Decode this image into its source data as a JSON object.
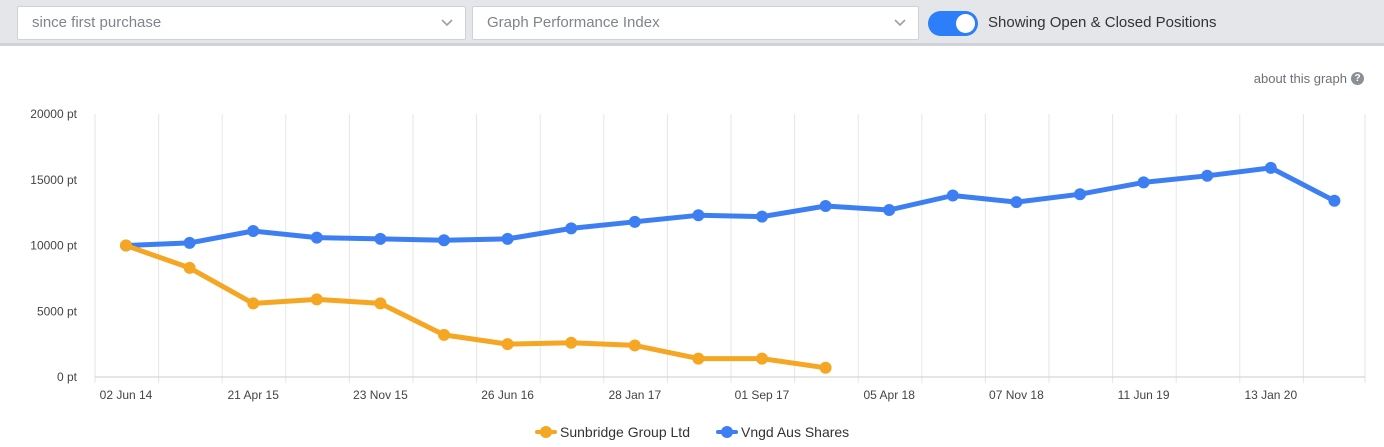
{
  "toolbar": {
    "range_select": "since first purchase",
    "metric_select": "Graph Performance Index",
    "toggle_label": "Showing Open & Closed Positions",
    "toggle_on": true
  },
  "about_link": "about this graph",
  "colors": {
    "accent": "#2d7ff9",
    "series_orange": "#f5a623",
    "series_blue": "#3d7ff3"
  },
  "chart_data": {
    "type": "line",
    "x_tick_labels": [
      "02 Jun 14",
      "21 Apr 15",
      "23 Nov 15",
      "26 Jun 16",
      "28 Jan 17",
      "01 Sep 17",
      "05 Apr 18",
      "07 Nov 18",
      "11 Jun 19",
      "13 Jan 20"
    ],
    "y_tick_labels": [
      "0 pt",
      "5000 pt",
      "10000 pt",
      "15000 pt",
      "20000 pt"
    ],
    "ylim": [
      0,
      20000
    ],
    "series": [
      {
        "name": "Sunbridge Group Ltd",
        "color": "#f5a623",
        "values": [
          10000,
          8300,
          5600,
          5900,
          5600,
          3200,
          2500,
          2600,
          2400,
          1400,
          1400,
          700
        ]
      },
      {
        "name": "Vngd Aus Shares",
        "color": "#3d7ff3",
        "values": [
          10000,
          10200,
          11100,
          10600,
          10500,
          10400,
          10500,
          11300,
          11800,
          12300,
          12200,
          13000,
          12700,
          13800,
          13300,
          13900,
          14800,
          15300,
          15900,
          13400
        ]
      }
    ]
  }
}
